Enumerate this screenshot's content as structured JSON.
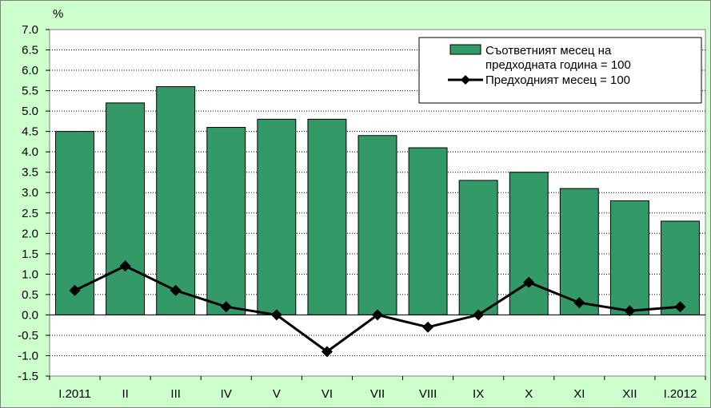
{
  "chart_data": {
    "type": "bar",
    "ylabel": "%",
    "ylim": [
      -1.5,
      7.0
    ],
    "ytick_step": 0.5,
    "ytick_labels": [
      "-1.5",
      "-1.0",
      "-0.5",
      "0.0",
      "0.5",
      "1.0",
      "1.5",
      "2.0",
      "2.5",
      "3.0",
      "3.5",
      "4.0",
      "4.5",
      "5.0",
      "5.5",
      "6.0",
      "6.5",
      "7.0"
    ],
    "grid": "horizontal-dotted",
    "legend_position": "top-right",
    "categories": [
      "I.2011",
      "II",
      "III",
      "IV",
      "V",
      "VI",
      "VII",
      "VIII",
      "IX",
      "X",
      "XI",
      "XII",
      "I.2012"
    ],
    "series": [
      {
        "name": "Съответният месец на предходната година = 100",
        "name_lines": [
          "Съответният месец на",
          "предходната година = 100"
        ],
        "type": "bar",
        "color": "#339966",
        "values": [
          4.5,
          5.2,
          5.6,
          4.6,
          4.8,
          4.8,
          4.4,
          4.1,
          3.3,
          3.5,
          3.1,
          2.8,
          2.3
        ]
      },
      {
        "name": "Предходният месец = 100",
        "type": "line",
        "marker": "diamond",
        "color": "#000000",
        "values": [
          0.6,
          1.2,
          0.6,
          0.2,
          0.0,
          -0.9,
          0.0,
          -0.3,
          0.0,
          0.8,
          0.3,
          0.1,
          0.2
        ]
      }
    ]
  }
}
